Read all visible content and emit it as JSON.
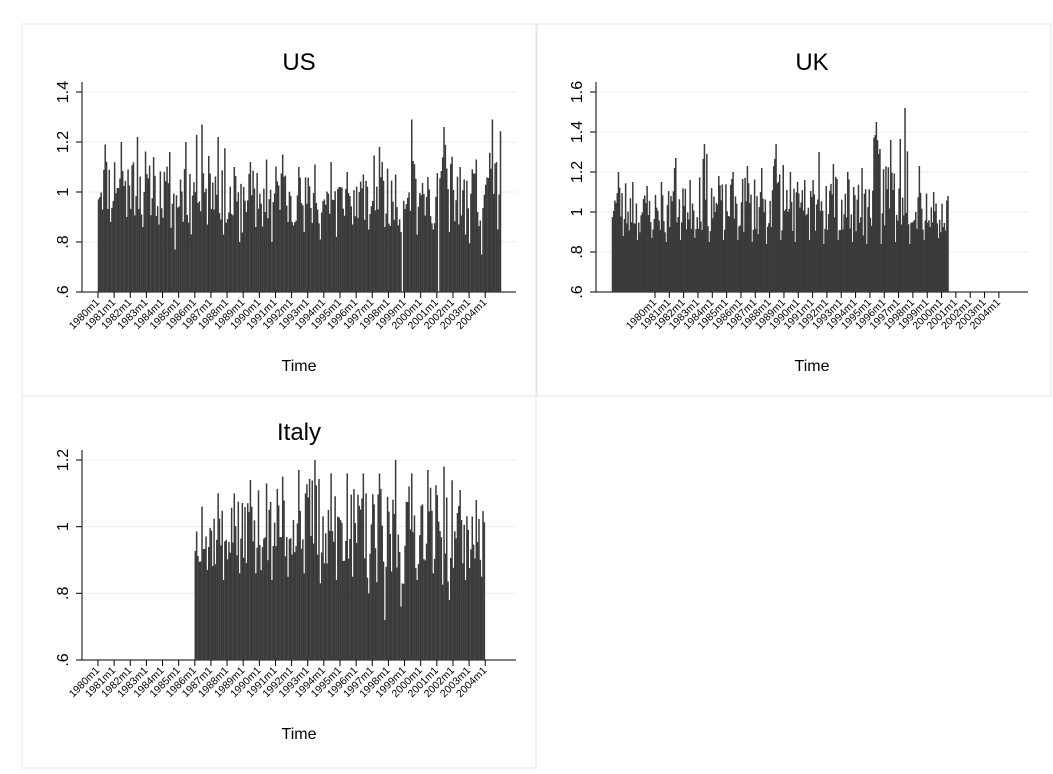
{
  "chart_data": [
    {
      "type": "bar",
      "title": "US",
      "xlabel": "Time",
      "ylabel": "",
      "ylim": [
        0.6,
        1.4
      ],
      "yticks": [
        ".6",
        ".8",
        "1",
        "1.2",
        "1.4"
      ],
      "ytick_values": [
        0.6,
        0.8,
        1.0,
        1.2,
        1.4
      ],
      "x_range": [
        "1980m1",
        "2004m12"
      ],
      "xticks": [
        "1980m1",
        "1981m1",
        "1982m1",
        "1983m1",
        "1984m1",
        "1985m1",
        "1986m1",
        "1987m1",
        "1988m1",
        "1989m1",
        "1990m1",
        "1991m1",
        "1992m1",
        "1993m1",
        "1994m1",
        "1995m1",
        "1996m1",
        "1997m1",
        "1998m1",
        "1999m1",
        "2000m1",
        "2001m1",
        "2002m1",
        "2003m1",
        "2004m1"
      ],
      "grid": true,
      "color": "#3a3a3a",
      "yearly_high": [
        1.19,
        1.2,
        1.22,
        1.14,
        1.16,
        1.2,
        1.27,
        1.22,
        1.1,
        1.12,
        1.13,
        1.15,
        1.1,
        1.11,
        1.12,
        1.08,
        1.07,
        1.18,
        1.07,
        1.29,
        1.06,
        1.26,
        1.1,
        1.13,
        1.29
      ],
      "yearly_low": [
        0.88,
        0.9,
        0.86,
        0.87,
        0.77,
        0.83,
        0.87,
        0.83,
        0.8,
        0.86,
        0.8,
        0.88,
        0.84,
        0.81,
        0.82,
        0.87,
        0.85,
        0.86,
        0.84,
        0.83,
        0.85,
        0.84,
        0.83,
        0.75,
        0.85
      ],
      "gaps": [
        "1998m11",
        "2001m2"
      ]
    },
    {
      "type": "bar",
      "title": "UK",
      "xlabel": "Time",
      "ylabel": "",
      "ylim": [
        0.6,
        1.6
      ],
      "yticks": [
        ".6",
        ".8",
        "1",
        "1.2",
        "1.4",
        "1.6"
      ],
      "ytick_values": [
        0.6,
        0.8,
        1.0,
        1.2,
        1.4,
        1.6
      ],
      "x_range": [
        "1977m1",
        "2004m12"
      ],
      "data_range": [
        "1977m1",
        "2000m6"
      ],
      "xticks": [
        "1980m1",
        "1981m1",
        "1982m1",
        "1983m1",
        "1984m1",
        "1985m1",
        "1986m1",
        "1987m1",
        "1988m1",
        "1989m1",
        "1990m1",
        "1991m1",
        "1992m1",
        "1993m1",
        "1994m1",
        "1995m1",
        "1996m1",
        "1997m1",
        "1998m1",
        "1999m1",
        "2000m1",
        "2001m1",
        "2002m1",
        "2003m1",
        "2004m1"
      ],
      "grid": true,
      "color": "#3a3a3a",
      "yearly_high": [
        1.2,
        1.15,
        1.13,
        1.15,
        1.27,
        1.16,
        1.34,
        1.18,
        1.2,
        1.23,
        1.22,
        1.34,
        1.2,
        1.16,
        1.3,
        1.24,
        1.2,
        1.22,
        1.45,
        1.36,
        1.52,
        1.23,
        1.1,
        1.08
      ],
      "yearly_low": [
        0.88,
        0.86,
        0.87,
        0.85,
        0.86,
        0.87,
        0.85,
        0.86,
        0.86,
        0.85,
        0.84,
        0.86,
        0.85,
        0.86,
        0.84,
        0.86,
        0.85,
        0.84,
        0.84,
        0.85,
        0.84,
        0.86,
        0.87,
        0.88
      ]
    },
    {
      "type": "bar",
      "title": "Italy",
      "xlabel": "Time",
      "ylabel": "",
      "ylim": [
        0.6,
        1.2
      ],
      "yticks": [
        ".6",
        ".8",
        "1",
        "1.2"
      ],
      "ytick_values": [
        0.6,
        0.8,
        1.0,
        1.2
      ],
      "x_range": [
        "1980m1",
        "2004m12"
      ],
      "data_range": [
        "1986m1",
        "2003m12"
      ],
      "xticks": [
        "1980m1",
        "1981m1",
        "1982m1",
        "1983m1",
        "1984m1",
        "1985m1",
        "1986m1",
        "1987m1",
        "1988m1",
        "1989m1",
        "1990m1",
        "1991m1",
        "1992m1",
        "1993m1",
        "1994m1",
        "1995m1",
        "1996m1",
        "1997m1",
        "1998m1",
        "1999m1",
        "2000m1",
        "2001m1",
        "2002m1",
        "2003m1",
        "2004m1"
      ],
      "grid": true,
      "color": "#3a3a3a",
      "yearly_high": [
        1.06,
        1.1,
        1.1,
        1.14,
        1.13,
        1.15,
        1.17,
        1.2,
        1.16,
        1.16,
        1.16,
        1.16,
        1.2,
        1.16,
        1.17,
        1.18,
        1.11,
        1.08
      ],
      "yearly_low": [
        0.87,
        0.84,
        0.86,
        0.86,
        0.84,
        0.85,
        0.86,
        0.83,
        0.84,
        0.85,
        0.8,
        0.72,
        0.76,
        0.84,
        0.86,
        0.78,
        0.84,
        0.85
      ]
    }
  ]
}
